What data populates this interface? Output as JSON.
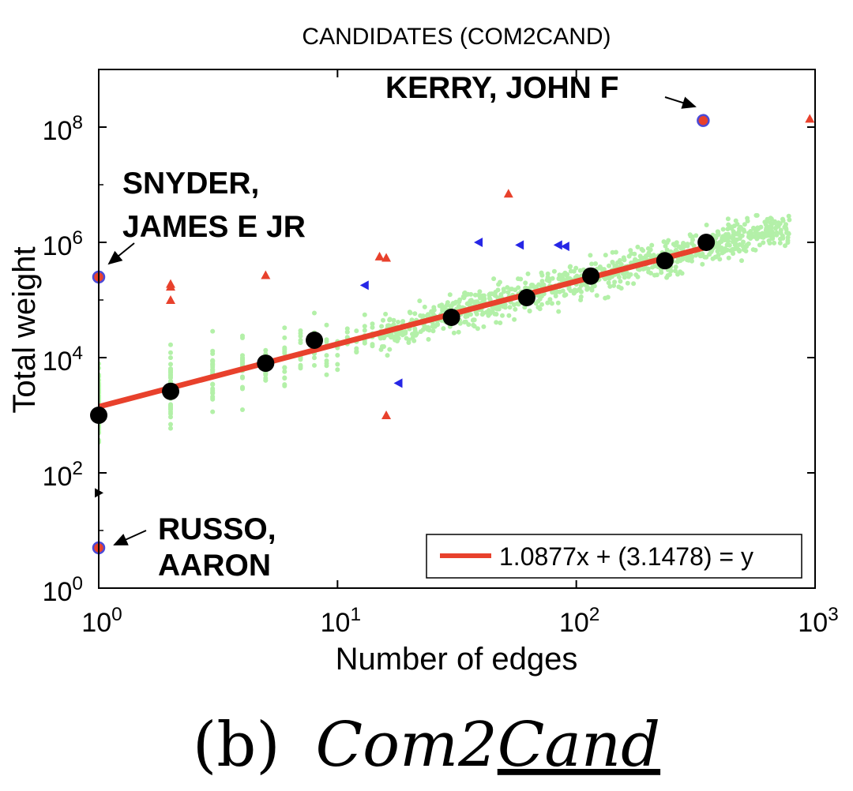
{
  "chart_data": {
    "type": "scatter",
    "title": "CANDIDATES (COM2CAND)",
    "xlabel": "Number of edges",
    "ylabel": "Total weight",
    "xscale": "log",
    "yscale": "log",
    "xlim": [
      1,
      1000
    ],
    "ylim": [
      1,
      1000000000
    ],
    "x_ticks": [
      {
        "value": 1,
        "base": "10",
        "exp": "0"
      },
      {
        "value": 10,
        "base": "10",
        "exp": "1"
      },
      {
        "value": 100,
        "base": "10",
        "exp": "2"
      },
      {
        "value": 1000,
        "base": "10",
        "exp": "3"
      }
    ],
    "y_ticks": [
      {
        "value": 1,
        "base": "10",
        "exp": "0"
      },
      {
        "value": 100,
        "base": "10",
        "exp": "2"
      },
      {
        "value": 10000,
        "base": "10",
        "exp": "4"
      },
      {
        "value": 1000000,
        "base": "10",
        "exp": "6"
      },
      {
        "value": 100000000,
        "base": "10",
        "exp": "8"
      }
    ],
    "grid": false,
    "legend": {
      "position": "bottom-right",
      "entries": [
        "1.0877x + (3.1478) = y"
      ]
    },
    "fit_line": {
      "slope": 1.0877,
      "intercept": 3.1478,
      "x_range": [
        1,
        350
      ],
      "color": "#e8412c"
    },
    "bucket_medians": [
      {
        "x": 1,
        "y": 1000
      },
      {
        "x": 2,
        "y": 2600
      },
      {
        "x": 5,
        "y": 8000
      },
      {
        "x": 8,
        "y": 20000
      },
      {
        "x": 30,
        "y": 50000
      },
      {
        "x": 62,
        "y": 110000
      },
      {
        "x": 115,
        "y": 260000
      },
      {
        "x": 235,
        "y": 480000
      },
      {
        "x": 350,
        "y": 1000000
      }
    ],
    "outliers_red": [
      {
        "x": 2,
        "y": 190000
      },
      {
        "x": 2,
        "y": 170000
      },
      {
        "x": 2,
        "y": 100000
      },
      {
        "x": 5,
        "y": 270000
      },
      {
        "x": 15,
        "y": 570000
      },
      {
        "x": 16,
        "y": 540000
      },
      {
        "x": 16,
        "y": 1000
      },
      {
        "x": 52,
        "y": 7000000
      },
      {
        "x": 950,
        "y": 140000000
      },
      {
        "x": 340,
        "y": 130000000
      },
      {
        "x": 1,
        "y": 5
      }
    ],
    "outliers_blue": [
      {
        "x": 13,
        "y": 180000
      },
      {
        "x": 18,
        "y": 3600
      },
      {
        "x": 39,
        "y": 1000000
      },
      {
        "x": 58,
        "y": 900000
      },
      {
        "x": 84,
        "y": 900000
      },
      {
        "x": 90,
        "y": 850000
      }
    ],
    "outliers_black": [
      {
        "x": 1,
        "y": 45
      }
    ],
    "highlighted": [
      {
        "x": 340,
        "y": 130000000
      },
      {
        "x": 1,
        "y": 250000
      },
      {
        "x": 1,
        "y": 5
      }
    ],
    "annotations": [
      {
        "lines": [
          "KERRY, JOHN F"
        ],
        "target": {
          "x": 340,
          "y": 130000000
        }
      },
      {
        "lines": [
          "SNYDER,",
          "JAMES E JR"
        ],
        "target": {
          "x": 1,
          "y": 250000
        }
      },
      {
        "lines": [
          "RUSSO,",
          "AARON"
        ],
        "target": {
          "x": 1,
          "y": 5
        }
      }
    ],
    "colors": {
      "cloud": "#b3f0a8",
      "fit": "#e8412c",
      "median": "#000000",
      "red_marker": "#e8412c",
      "blue_marker": "#2626e6",
      "circle": "#4a4ad8"
    }
  },
  "caption": {
    "label": "(b)",
    "name_part1": "Com2",
    "name_part2": "Cand"
  }
}
